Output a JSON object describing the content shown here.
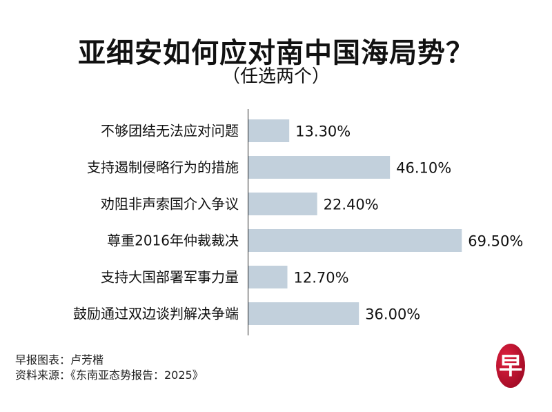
{
  "chart_data": {
    "type": "bar",
    "orientation": "horizontal",
    "title": "亚细安如何应对南中国海局势？",
    "subtitle": "（任选两个）",
    "categories": [
      "不够团结无法应对问题",
      "支持遏制侵略行为的措施",
      "劝阻非声索国介入争议",
      "尊重2016年仲裁裁决",
      "支持大国部署军事力量",
      "鼓励通过双边谈判解决争端"
    ],
    "values": [
      13.3,
      46.1,
      22.4,
      69.5,
      12.7,
      36.0
    ],
    "value_labels": [
      "13.30%",
      "46.10%",
      "22.40%",
      "69.50%",
      "12.70%",
      "36.00%"
    ],
    "xlabel": "",
    "ylabel": "",
    "xlim": [
      0,
      100
    ],
    "grid": false,
    "bar_color": "#c2d0dc"
  },
  "credits": {
    "chart_by": "早报图表：卢芳楷",
    "source": "资料来源：《东南亚态势报告：2025》"
  },
  "logo": {
    "text": "早",
    "color": "#c8102e"
  }
}
